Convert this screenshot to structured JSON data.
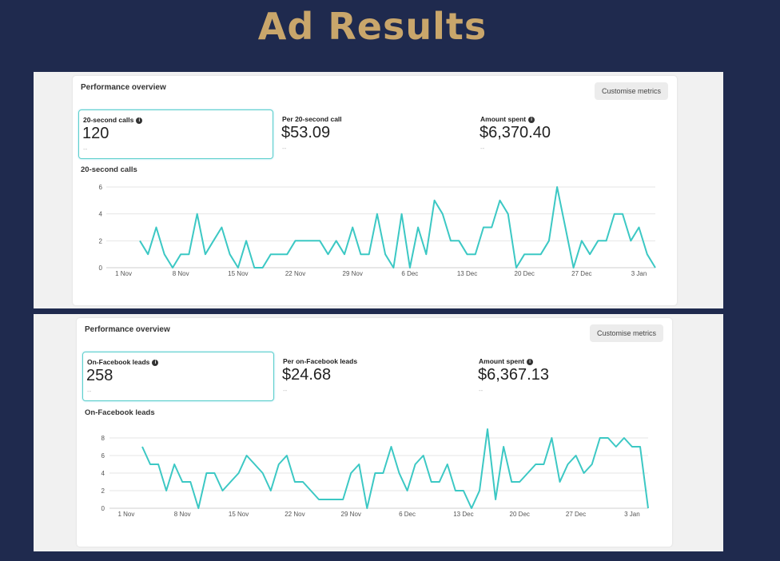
{
  "page_title": "Ad Results",
  "colors": {
    "background": "#1f2a4e",
    "title": "#c9a66b",
    "line": "#3cc8c4"
  },
  "panels": [
    {
      "header": "Performance overview",
      "button": "Customise metrics",
      "metrics": [
        {
          "label": "20-second calls",
          "info_icon": true,
          "value": "120",
          "sub": "--",
          "selected": true
        },
        {
          "label": "Per 20-second call",
          "info_icon": false,
          "value": "$53.09",
          "sub": "--",
          "selected": false
        },
        {
          "label": "Amount spent",
          "info_icon": true,
          "value": "$6,370.40",
          "sub": "--",
          "selected": false
        }
      ],
      "chart_title": "20-second calls"
    },
    {
      "header": "Performance overview",
      "button": "Customise metrics",
      "metrics": [
        {
          "label": "On-Facebook leads",
          "info_icon": true,
          "value": "258",
          "sub": "--",
          "selected": true
        },
        {
          "label": "Per on-Facebook leads",
          "info_icon": false,
          "value": "$24.68",
          "sub": "--",
          "selected": false
        },
        {
          "label": "Amount spent",
          "info_icon": true,
          "value": "$6,367.13",
          "sub": "--",
          "selected": false
        }
      ],
      "chart_title": "On-Facebook leads"
    }
  ],
  "chart_data": [
    {
      "type": "line",
      "title": "20-second calls",
      "x_start": "3 Nov",
      "x_end": "5 Jan",
      "x_ticks": [
        "1 Nov",
        "8 Nov",
        "15 Nov",
        "22 Nov",
        "29 Nov",
        "6 Dec",
        "13 Dec",
        "20 Dec",
        "27 Dec",
        "3 Jan"
      ],
      "y_ticks": [
        0,
        2,
        4,
        6
      ],
      "ylim": [
        0,
        6
      ],
      "grid": true,
      "values": [
        2,
        1,
        3,
        1,
        0,
        1,
        1,
        4,
        1,
        2,
        3,
        1,
        0,
        2,
        0,
        0,
        1,
        1,
        1,
        2,
        2,
        2,
        2,
        1,
        2,
        1,
        3,
        1,
        1,
        4,
        1,
        0,
        4,
        0,
        3,
        1,
        5,
        4,
        2,
        2,
        1,
        1,
        3,
        3,
        5,
        4,
        0,
        1,
        1,
        1,
        2,
        6,
        3,
        0,
        2,
        1,
        2,
        2,
        4,
        4,
        2,
        3,
        1,
        0
      ]
    },
    {
      "type": "line",
      "title": "On-Facebook leads",
      "x_start": "3 Nov",
      "x_end": "5 Jan",
      "x_ticks": [
        "1 Nov",
        "8 Nov",
        "15 Nov",
        "22 Nov",
        "29 Nov",
        "6 Dec",
        "13 Dec",
        "20 Dec",
        "27 Dec",
        "3 Jan"
      ],
      "y_ticks": [
        0,
        2,
        4,
        6,
        8
      ],
      "ylim": [
        0,
        8
      ],
      "grid": true,
      "values": [
        7,
        5,
        5,
        2,
        5,
        3,
        3,
        0,
        4,
        4,
        2,
        3,
        4,
        6,
        5,
        4,
        2,
        5,
        6,
        3,
        3,
        2,
        1,
        1,
        1,
        1,
        4,
        5,
        0,
        4,
        4,
        7,
        4,
        2,
        5,
        6,
        3,
        3,
        5,
        2,
        2,
        0,
        2,
        9,
        1,
        7,
        3,
        3,
        4,
        5,
        5,
        8,
        3,
        5,
        6,
        4,
        5,
        8,
        8,
        7,
        8,
        7,
        7,
        0
      ]
    }
  ]
}
